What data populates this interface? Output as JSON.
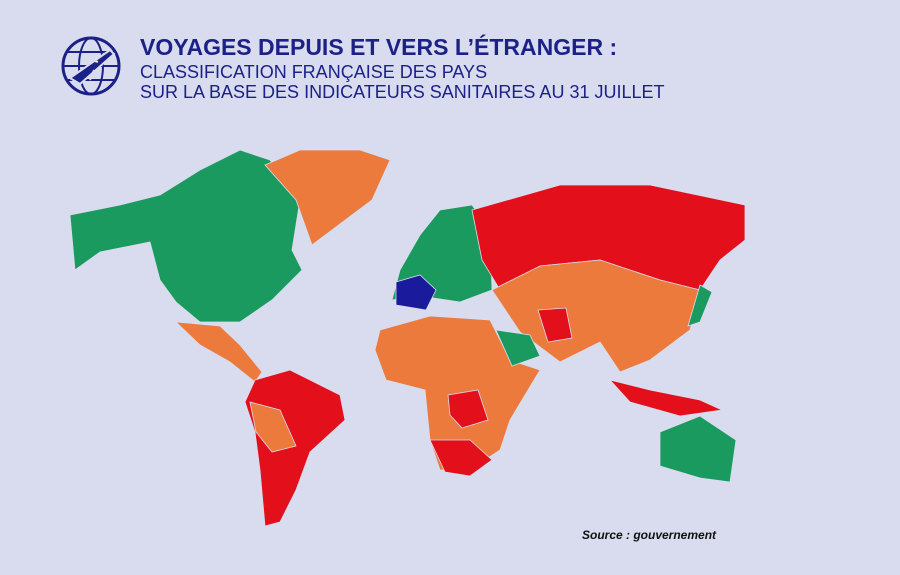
{
  "header": {
    "title": "VOYAGES DEPUIS ET VERS L’ÉTRANGER :",
    "subtitle_lines": [
      "CLASSIFICATION FRANÇAISE DES PAYS",
      "SUR LA BASE DES INDICATEURS SANITAIRES AU 31 JUILLET"
    ]
  },
  "source": "Source : gouvernement"
}
